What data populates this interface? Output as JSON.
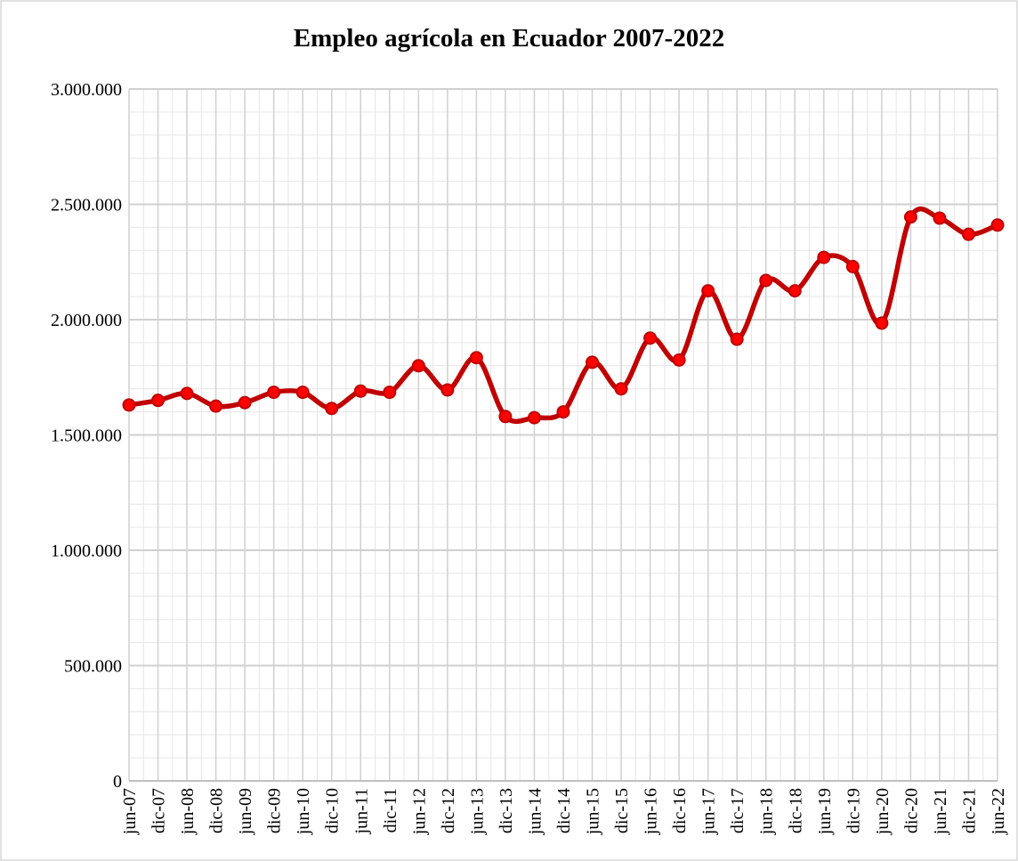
{
  "chart_data": {
    "type": "line",
    "title": "Empleo agrícola en Ecuador 2007-2022",
    "categories": [
      "jun-07",
      "dic-07",
      "jun-08",
      "dic-08",
      "jun-09",
      "dic-09",
      "jun-10",
      "dic-10",
      "jun-11",
      "dic-11",
      "jun-12",
      "dic-12",
      "jun-13",
      "dic-13",
      "jun-14",
      "dic-14",
      "jun-15",
      "dic-15",
      "jun-16",
      "dic-16",
      "jun-17",
      "dic-17",
      "jun-18",
      "dic-18",
      "jun-19",
      "dic-19",
      "jun-20",
      "dic-20",
      "jun-21",
      "dic-21",
      "jun-22"
    ],
    "series": [
      {
        "color": "#c00000",
        "marker_color": "#ff0000",
        "values": [
          1630000,
          1650000,
          1680000,
          1625000,
          1640000,
          1685000,
          1685000,
          1615000,
          1690000,
          1685000,
          1800000,
          1695000,
          1835000,
          1580000,
          1575000,
          1600000,
          1815000,
          1700000,
          1920000,
          1825000,
          2125000,
          1915000,
          2170000,
          2125000,
          2270000,
          2230000,
          1985000,
          2445000,
          2440000,
          2370000,
          2410000
        ]
      }
    ],
    "ylim": [
      0,
      3000000
    ],
    "yticks": [
      0,
      {
        "value": 500000,
        "label": "500.000"
      },
      {
        "value": 1000000,
        "label": "1.000.000"
      },
      {
        "value": 1500000,
        "label": "1.500.000"
      },
      {
        "value": 2000000,
        "label": "2.000.000"
      },
      {
        "value": 2500000,
        "label": "2.500.000"
      },
      {
        "value": 3000000,
        "label": "3.000.000"
      }
    ],
    "grid": true,
    "smooth": true
  }
}
